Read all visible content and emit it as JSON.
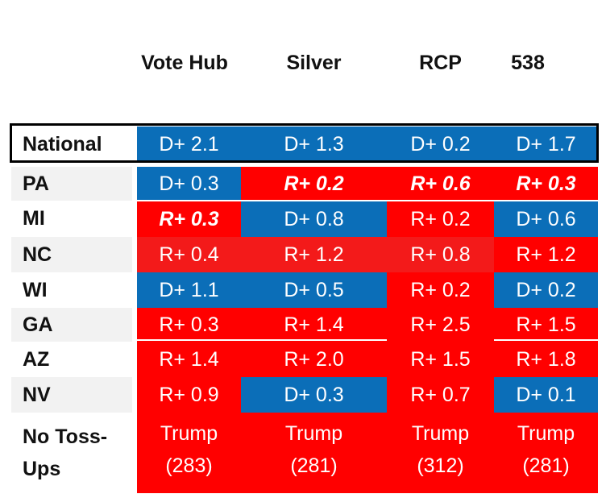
{
  "chart_data": {
    "type": "table",
    "columns": [
      "Vote Hub",
      "Silver",
      "RCP",
      "538"
    ],
    "rows": [
      {
        "label": "National",
        "cells": [
          {
            "text": "D+ 2.1",
            "party": "D",
            "margin": 2.1
          },
          {
            "text": "D+ 1.3",
            "party": "D",
            "margin": 1.3
          },
          {
            "text": "D+ 0.2",
            "party": "D",
            "margin": 0.2
          },
          {
            "text": "D+ 1.7",
            "party": "D",
            "margin": 1.7
          }
        ]
      },
      {
        "label": "PA",
        "cells": [
          {
            "text": "D+ 0.3",
            "party": "D",
            "margin": 0.3
          },
          {
            "text": "R+ 0.2",
            "party": "R",
            "margin": 0.2,
            "emphasis": true
          },
          {
            "text": "R+ 0.6",
            "party": "R",
            "margin": 0.6,
            "emphasis": true
          },
          {
            "text": "R+ 0.3",
            "party": "R",
            "margin": 0.3,
            "emphasis": true
          }
        ]
      },
      {
        "label": "MI",
        "cells": [
          {
            "text": "R+ 0.3",
            "party": "R",
            "margin": 0.3,
            "emphasis": true
          },
          {
            "text": "D+ 0.8",
            "party": "D",
            "margin": 0.8
          },
          {
            "text": "R+ 0.2",
            "party": "R",
            "margin": 0.2
          },
          {
            "text": "D+ 0.6",
            "party": "D",
            "margin": 0.6
          }
        ]
      },
      {
        "label": "NC",
        "cells": [
          {
            "text": "R+ 0.4",
            "party": "R",
            "margin": 0.4,
            "shade": "#f31a1a"
          },
          {
            "text": "R+ 1.2",
            "party": "R",
            "margin": 1.2,
            "shade": "#f31a1a"
          },
          {
            "text": "R+ 0.8",
            "party": "R",
            "margin": 0.8,
            "shade": "#f31a1a"
          },
          {
            "text": "R+ 1.2",
            "party": "R",
            "margin": 1.2
          }
        ]
      },
      {
        "label": "WI",
        "cells": [
          {
            "text": "D+ 1.1",
            "party": "D",
            "margin": 1.1
          },
          {
            "text": "D+ 0.5",
            "party": "D",
            "margin": 0.5
          },
          {
            "text": "R+ 0.2",
            "party": "R",
            "margin": 0.2
          },
          {
            "text": "D+ 0.2",
            "party": "D",
            "margin": 0.2
          }
        ]
      },
      {
        "label": "GA",
        "cells": [
          {
            "text": "R+ 0.3",
            "party": "R",
            "margin": 0.3
          },
          {
            "text": "R+ 1.4",
            "party": "R",
            "margin": 1.4
          },
          {
            "text": "R+ 2.5",
            "party": "R",
            "margin": 2.5
          },
          {
            "text": "R+ 1.5",
            "party": "R",
            "margin": 1.5
          }
        ]
      },
      {
        "label": "AZ",
        "cells": [
          {
            "text": "R+ 1.4",
            "party": "R",
            "margin": 1.4
          },
          {
            "text": "R+ 2.0",
            "party": "R",
            "margin": 2.0
          },
          {
            "text": "R+ 1.5",
            "party": "R",
            "margin": 1.5
          },
          {
            "text": "R+ 1.8",
            "party": "R",
            "margin": 1.8
          }
        ]
      },
      {
        "label": "NV",
        "cells": [
          {
            "text": "R+ 0.9",
            "party": "R",
            "margin": 0.9
          },
          {
            "text": "D+ 0.3",
            "party": "D",
            "margin": 0.3
          },
          {
            "text": "R+ 0.7",
            "party": "R",
            "margin": 0.7
          },
          {
            "text": "D+ 0.1",
            "party": "D",
            "margin": 0.1
          }
        ]
      },
      {
        "label": "No Toss-\nUps",
        "cells": [
          {
            "text": "Trump\n(283)",
            "party": "R",
            "electoral_votes": 283
          },
          {
            "text": "Trump\n(281)",
            "party": "R",
            "electoral_votes": 281
          },
          {
            "text": "Trump\n(312)",
            "party": "R",
            "electoral_votes": 312
          },
          {
            "text": "Trump\n(281)",
            "party": "R",
            "electoral_votes": 281
          }
        ]
      }
    ],
    "colors": {
      "D": "#0b6eb8",
      "R": "#ff0000"
    }
  }
}
